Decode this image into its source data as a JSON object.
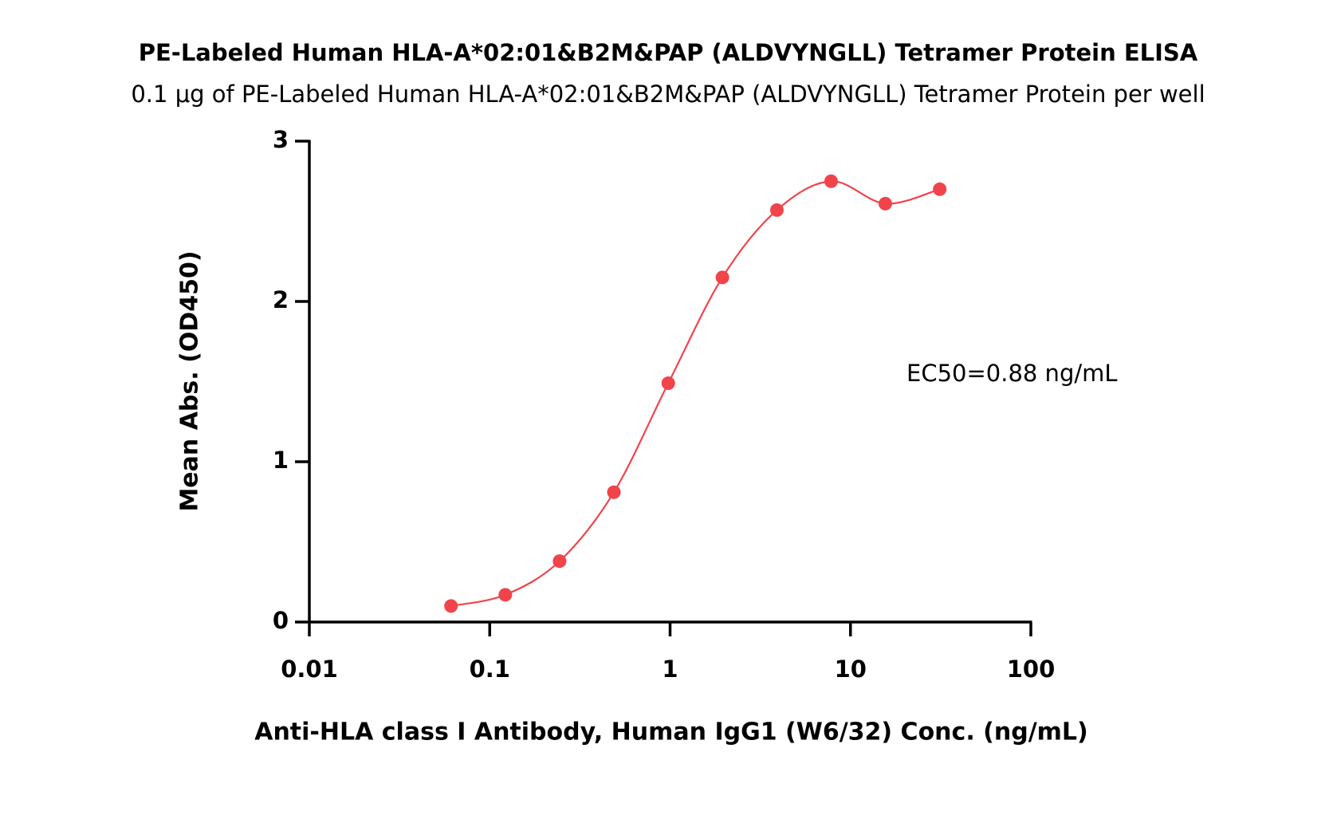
{
  "chart_data": {
    "type": "scatter",
    "title": "PE-Labeled Human HLA-A*02:01&B2M&PAP (ALDVYNGLL) Tetramer Protein ELISA",
    "subtitle": "0.1 μg of PE-Labeled Human HLA-A*02:01&B2M&PAP (ALDVYNGLL) Tetramer Protein per well",
    "x_label": "Anti-HLA class I Antibody, Human IgG1 (W6/32) Conc. (ng/mL)",
    "y_label": "Mean Abs. (OD450)",
    "annotation": "EC50=0.88 ng/mL",
    "x_scale": "log",
    "xlim": [
      0.01,
      100
    ],
    "xticks": [
      0.01,
      0.1,
      1,
      10,
      100
    ],
    "ylim": [
      0,
      3
    ],
    "yticks": [
      0,
      1,
      2,
      3
    ],
    "series": [
      {
        "color": "#f0444a",
        "x": [
          0.061,
          0.122,
          0.244,
          0.488,
          0.977,
          1.95,
          3.91,
          7.81,
          15.6,
          31.25
        ],
        "values": [
          0.1,
          0.17,
          0.38,
          0.81,
          1.49,
          2.15,
          2.57,
          2.75,
          2.61,
          2.7
        ]
      }
    ]
  }
}
